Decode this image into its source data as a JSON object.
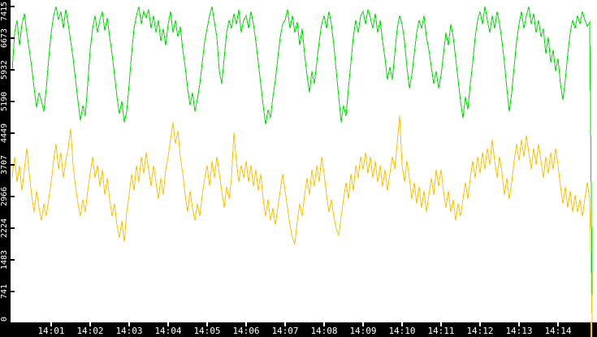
{
  "style": {
    "background": "#000000",
    "plot_background": "#ffffff",
    "axis_label_color": "#ffffff"
  },
  "chart_data": {
    "type": "line",
    "title": "",
    "xlabel": "",
    "ylabel": "",
    "grid": false,
    "legend": "none",
    "ylim": [
      0,
      7567
    ],
    "y_axis": {
      "ticks": [
        0,
        741,
        1483,
        2224,
        2966,
        3707,
        4449,
        5190,
        5932,
        6673,
        7415
      ],
      "tick_interval": 741.5,
      "side": "left",
      "label_rotation_deg": -90
    },
    "x_axis": {
      "ticks": [
        "14:01",
        "14:02",
        "14:03",
        "14:04",
        "14:05",
        "14:06",
        "14:07",
        "14:08",
        "14:09",
        "14:10",
        "14:11",
        "14:12",
        "14:13",
        "14:14"
      ],
      "unit": "time (HH:MM)"
    },
    "series": [
      {
        "name": "yellow-series",
        "color": "#ffc400",
        "values": [
          3400,
          3900,
          3300,
          3700,
          3100,
          3600,
          4100,
          3500,
          3000,
          2600,
          3100,
          2700,
          2400,
          2800,
          2500,
          2900,
          3300,
          3800,
          4200,
          3600,
          4000,
          3400,
          3800,
          4100,
          4560,
          3700,
          3200,
          2800,
          2500,
          2900,
          2600,
          3100,
          3500,
          3900,
          3400,
          3700,
          3200,
          3600,
          3000,
          3400,
          2900,
          2500,
          2800,
          2300,
          2000,
          2400,
          1900,
          2600,
          3000,
          3500,
          3100,
          3700,
          3300,
          3900,
          3500,
          4000,
          3600,
          3200,
          3700,
          3300,
          2900,
          3400,
          3000,
          3600,
          3900,
          4300,
          4700,
          4200,
          4500,
          3900,
          3500,
          3000,
          2600,
          3100,
          2700,
          2400,
          2800,
          2500,
          3000,
          3400,
          3700,
          3200,
          3800,
          3400,
          3900,
          3500,
          3100,
          2700,
          3200,
          2900,
          3400,
          4470,
          3800,
          3300,
          3700,
          3400,
          3800,
          3300,
          3700,
          3200,
          3600,
          3100,
          3500,
          2900,
          2500,
          2900,
          2400,
          2700,
          2300,
          2700,
          3100,
          3500,
          3100,
          2700,
          2300,
          2000,
          1850,
          2400,
          2800,
          2500,
          3000,
          3400,
          3000,
          3600,
          3200,
          3700,
          3300,
          3900,
          3500,
          3000,
          2600,
          2900,
          2500,
          2200,
          2050,
          2500,
          2900,
          3300,
          2900,
          3500,
          3100,
          3700,
          3400,
          3900,
          3600,
          4000,
          3500,
          3900,
          3400,
          3800,
          3300,
          3700,
          3200,
          3600,
          3100,
          3500,
          3900,
          3600,
          4200,
          4870,
          3700,
          3300,
          3800,
          3400,
          2900,
          3300,
          2800,
          3200,
          2700,
          3100,
          2600,
          3000,
          3400,
          3000,
          3600,
          3200,
          3600,
          3100,
          2700,
          3100,
          2600,
          2900,
          2400,
          2800,
          2500,
          2900,
          3300,
          2900,
          3400,
          3800,
          3400,
          3900,
          3500,
          4000,
          3600,
          4100,
          3700,
          4300,
          3800,
          3400,
          3900,
          3500,
          3000,
          3400,
          2900,
          3300,
          3800,
          4200,
          3800,
          4300,
          3900,
          4400,
          4000,
          3600,
          4100,
          3700,
          4200,
          3800,
          3400,
          3900,
          3500,
          4000,
          3600,
          4100,
          3700,
          3200,
          2800,
          3200,
          2700,
          3100,
          2600,
          3000,
          2600,
          2900,
          2500,
          2900,
          3300,
          2900,
          0
        ]
      },
      {
        "name": "green-series",
        "color": "#00dd00",
        "values": [
          5900,
          6800,
          7100,
          6500,
          7000,
          7250,
          6800,
          6400,
          6000,
          5500,
          5050,
          5400,
          5200,
          4950,
          5500,
          6200,
          6800,
          7200,
          7415,
          7100,
          7300,
          6900,
          7350,
          7000,
          6600,
          6200,
          5700,
          5200,
          4750,
          5100,
          4850,
          5600,
          6400,
          6900,
          7200,
          6800,
          7100,
          7300,
          6850,
          7150,
          6700,
          6300,
          5800,
          5300,
          4900,
          5200,
          4700,
          4950,
          5600,
          6300,
          6900,
          7200,
          7415,
          7000,
          7300,
          7150,
          7350,
          6900,
          7200,
          6800,
          7100,
          6600,
          6900,
          6500,
          7000,
          7300,
          6800,
          7100,
          6700,
          6950,
          6400,
          6000,
          5500,
          5100,
          5400,
          4950,
          5250,
          5600,
          6100,
          6600,
          6900,
          7200,
          7415,
          7050,
          6700,
          5900,
          5600,
          6200,
          6800,
          7100,
          6900,
          7250,
          7000,
          7350,
          6800,
          7100,
          7200,
          6900,
          7300,
          7000,
          6600,
          6100,
          5600,
          5100,
          4650,
          5000,
          4800,
          5300,
          5700,
          6200,
          6700,
          7000,
          7100,
          7350,
          6900,
          7200,
          6800,
          7050,
          6500,
          6900,
          6300,
          5800,
          5400,
          5900,
          5600,
          6100,
          6600,
          7000,
          7200,
          6900,
          7300,
          7000,
          6500,
          5900,
          5300,
          4700,
          5100,
          4850,
          5500,
          6100,
          6700,
          7100,
          6800,
          7200,
          7300,
          7000,
          7350,
          7150,
          6900,
          7250,
          6800,
          7100,
          6600,
          6200,
          5700,
          6000,
          5700,
          6300,
          6900,
          7200,
          7000,
          6600,
          6000,
          5500,
          5800,
          6300,
          6800,
          7100,
          6900,
          7200,
          6700,
          6400,
          6000,
          5600,
          5900,
          5500,
          5800,
          6300,
          6800,
          6500,
          7000,
          6700,
          6200,
          5700,
          5200,
          4800,
          5300,
          5000,
          5600,
          6100,
          6700,
          7100,
          7300,
          7000,
          7415,
          7100,
          6800,
          7200,
          6900,
          7300,
          7000,
          6600,
          6100,
          5500,
          4950,
          5400,
          6000,
          6600,
          7000,
          7300,
          6900,
          7200,
          7415,
          7000,
          7250,
          6800,
          7100,
          6700,
          6900,
          6300,
          6700,
          6100,
          6400,
          5900,
          6200,
          5600,
          5230,
          5700,
          6300,
          6800,
          7100,
          6900,
          7200,
          7000,
          7300,
          7100,
          6950,
          7050,
          660
        ]
      }
    ]
  }
}
